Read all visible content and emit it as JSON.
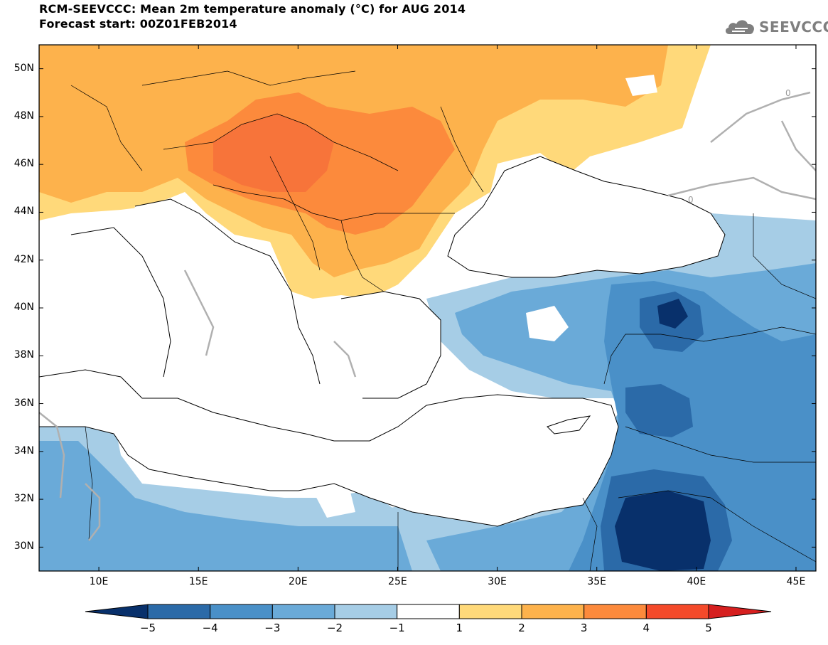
{
  "header": {
    "title_line1": "RCM-SEEVCCC: Mean 2m temperature anomaly (°C) for AUG 2014",
    "title_line2": "Forecast start: 00Z01FEB2014"
  },
  "logo": {
    "text": "SEEVCCC",
    "icon": "cloud-icon"
  },
  "map": {
    "lat_ticks": [
      {
        "label": "50N",
        "value": 50
      },
      {
        "label": "48N",
        "value": 48
      },
      {
        "label": "46N",
        "value": 46
      },
      {
        "label": "44N",
        "value": 44
      },
      {
        "label": "42N",
        "value": 42
      },
      {
        "label": "40N",
        "value": 40
      },
      {
        "label": "38N",
        "value": 38
      },
      {
        "label": "36N",
        "value": 36
      },
      {
        "label": "34N",
        "value": 34
      },
      {
        "label": "32N",
        "value": 32
      },
      {
        "label": "30N",
        "value": 30
      }
    ],
    "lon_ticks": [
      {
        "label": "10E",
        "value": 10
      },
      {
        "label": "15E",
        "value": 15
      },
      {
        "label": "20E",
        "value": 20
      },
      {
        "label": "25E",
        "value": 25
      },
      {
        "label": "30E",
        "value": 30
      },
      {
        "label": "35E",
        "value": 35
      },
      {
        "label": "40E",
        "value": 40
      },
      {
        "label": "45E",
        "value": 45
      }
    ],
    "contour_label": "0"
  },
  "colorbar": {
    "labels": [
      "−5",
      "−4",
      "−3",
      "−2",
      "−1",
      "1",
      "2",
      "3",
      "4",
      "5"
    ],
    "colors": [
      "#08306b",
      "#2b6aa8",
      "#4a90c8",
      "#6aaad8",
      "#a6cde6",
      "#ffffff",
      "#ffd97a",
      "#fdb24c",
      "#fc8a3c",
      "#f44a2a",
      "#d61f1f"
    ]
  },
  "anomaly_colors": {
    "deep_blue": "#08306b",
    "dark_blue": "#2b6aa8",
    "mid_blue": "#4a90c8",
    "blue": "#6aaad8",
    "light_blue": "#a6cde6",
    "neutral": "#ffffff",
    "yellow": "#ffd97a",
    "light_orange": "#fdb24c",
    "orange": "#fc8a3c",
    "red": "#f44a2a"
  }
}
